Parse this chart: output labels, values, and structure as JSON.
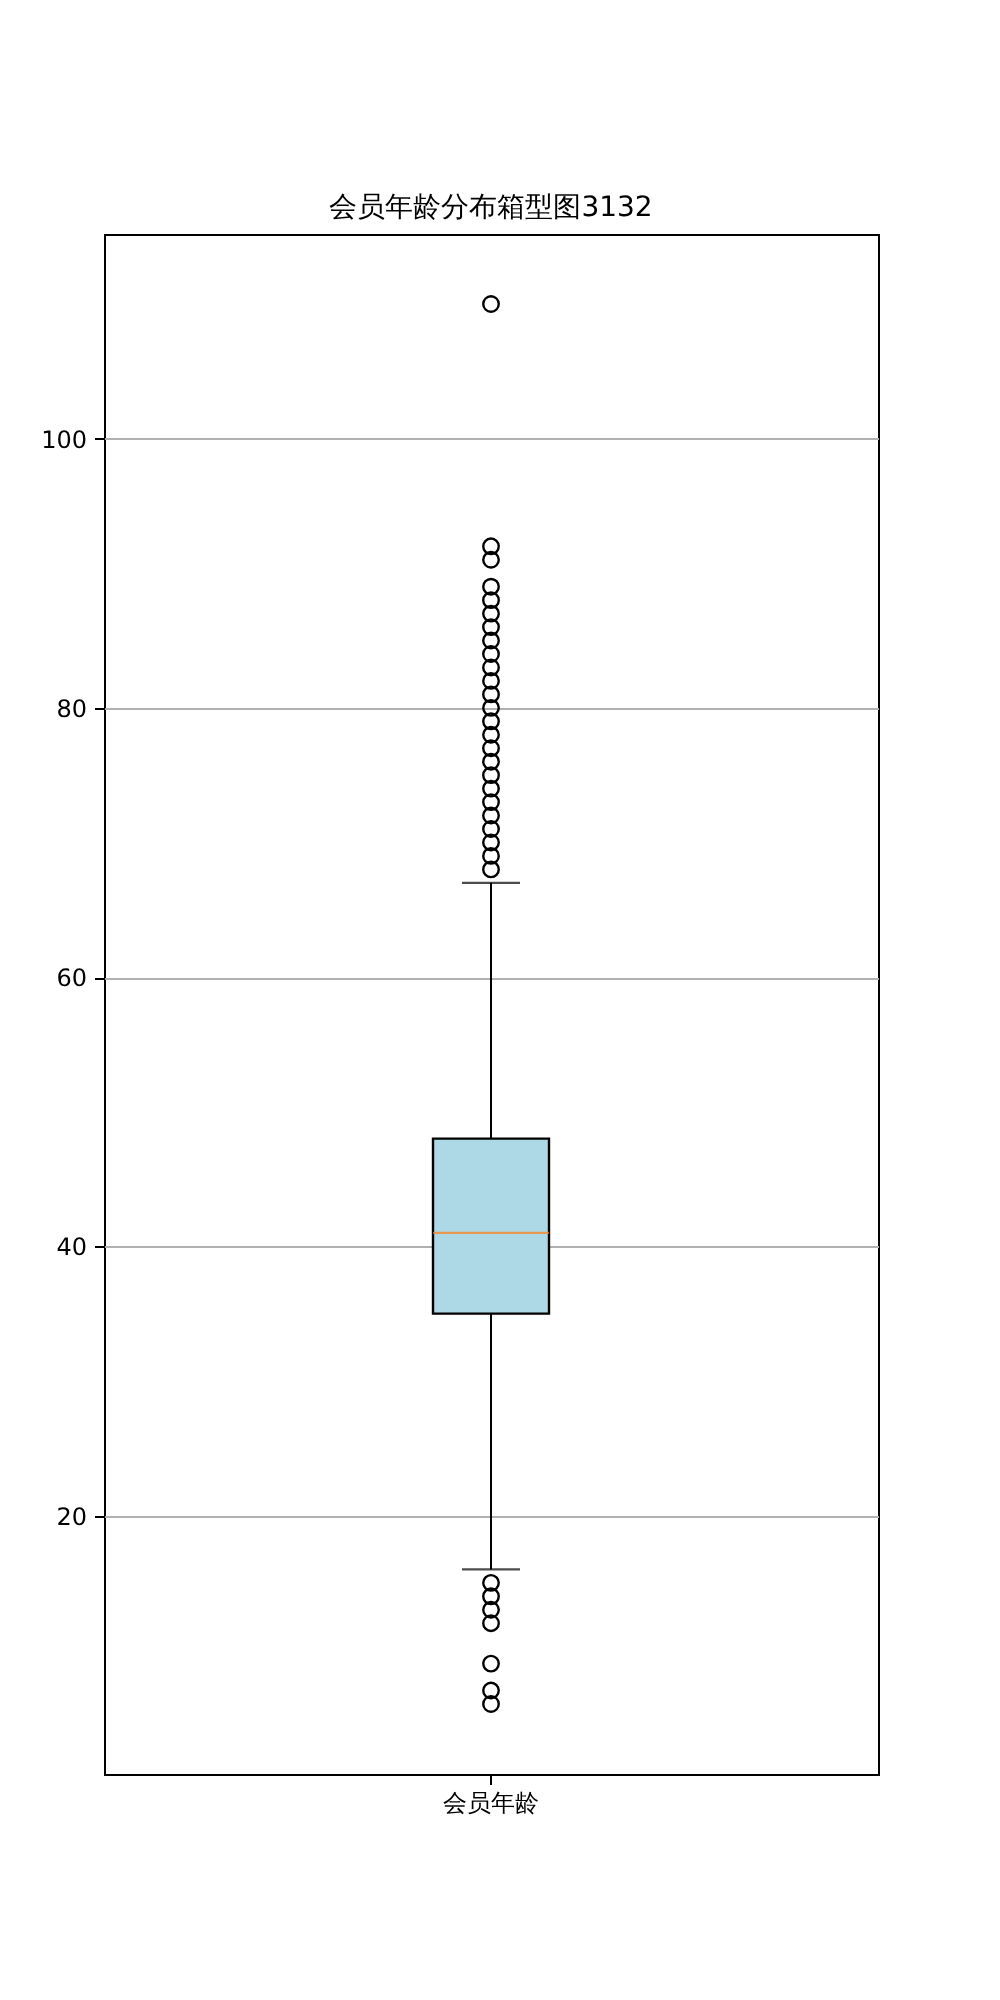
{
  "chart_data": {
    "type": "box",
    "title": "会员年龄分布箱型图3132",
    "categories": [
      "会员年龄"
    ],
    "color": "#add8e6",
    "boxes": [
      {
        "low": 16,
        "q1": 35,
        "median": 41,
        "q3": 48,
        "high": 67,
        "outliers": [
          6,
          7,
          9,
          12,
          13,
          14,
          15,
          68,
          69,
          70,
          71,
          72,
          73,
          74,
          75,
          76,
          77,
          78,
          79,
          80,
          81,
          82,
          83,
          84,
          85,
          86,
          87,
          88,
          89,
          91,
          92,
          110
        ]
      }
    ],
    "ylim": [
      0.8,
      115.2
    ],
    "yticks": [
      20,
      40,
      60,
      80,
      100
    ],
    "grid": "y"
  }
}
